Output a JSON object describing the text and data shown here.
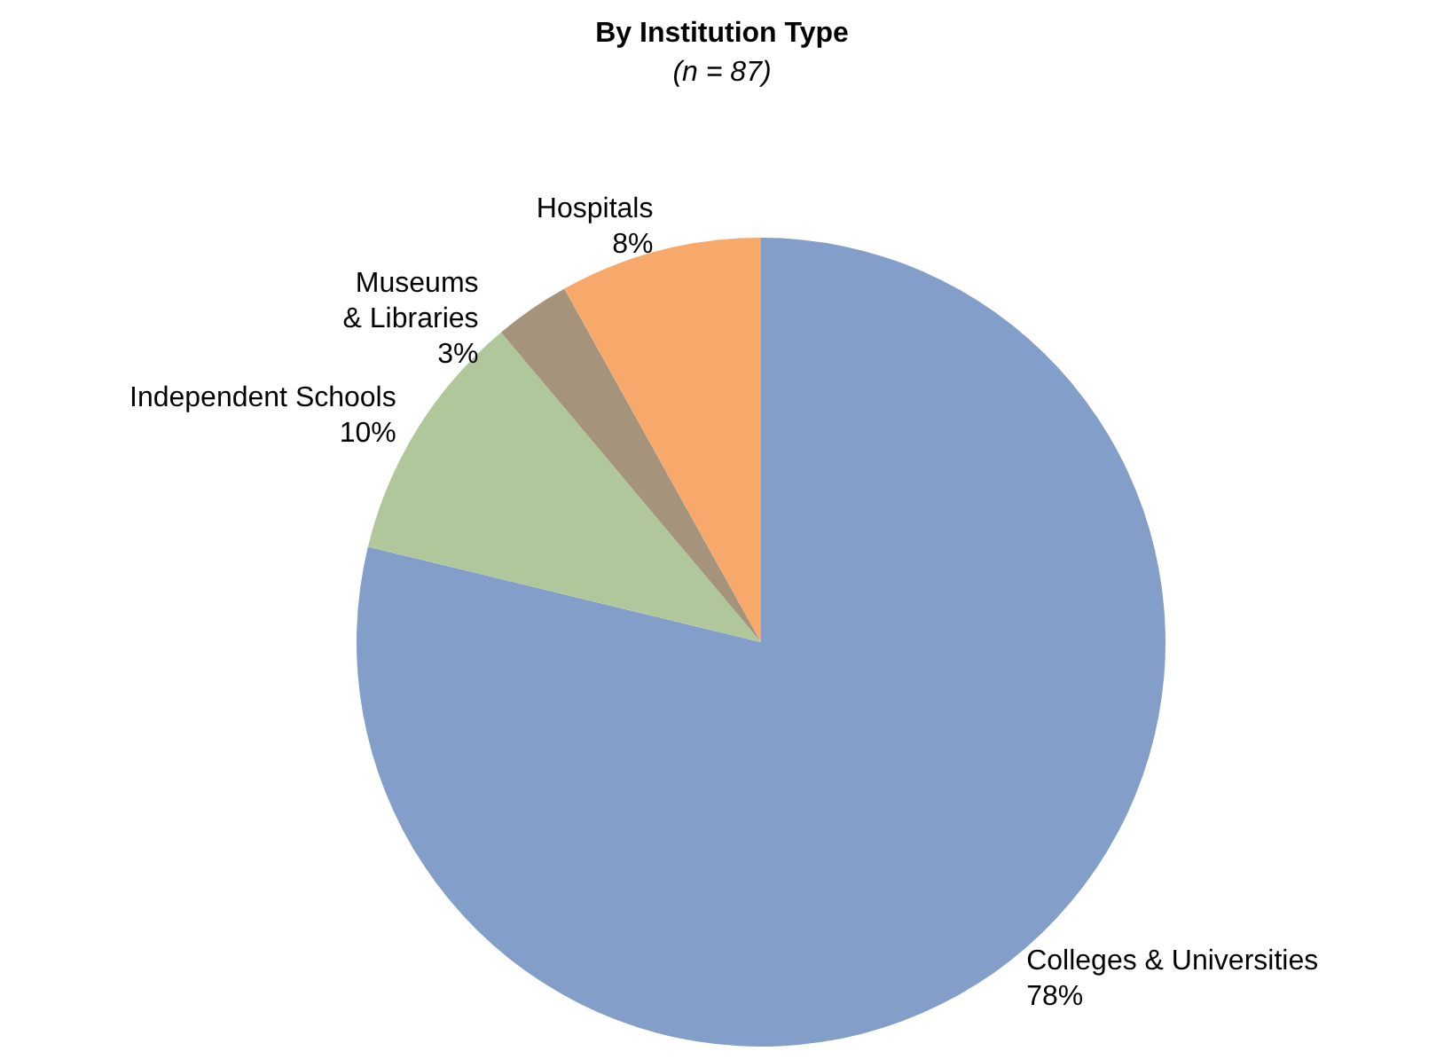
{
  "chart_data": {
    "type": "pie",
    "title": "By Institution Type",
    "subtitle": "(n = 87)",
    "categories": [
      "Colleges & Universities",
      "Independent Schools",
      "Museums\n& Libraries",
      "Hospitals"
    ],
    "values": [
      78,
      10,
      3,
      8
    ],
    "value_labels": [
      "78%",
      "10%",
      "3%",
      "8%"
    ],
    "colors": [
      "#829ec9",
      "#b0c79c",
      "#a5937b",
      "#f6a96a"
    ]
  }
}
